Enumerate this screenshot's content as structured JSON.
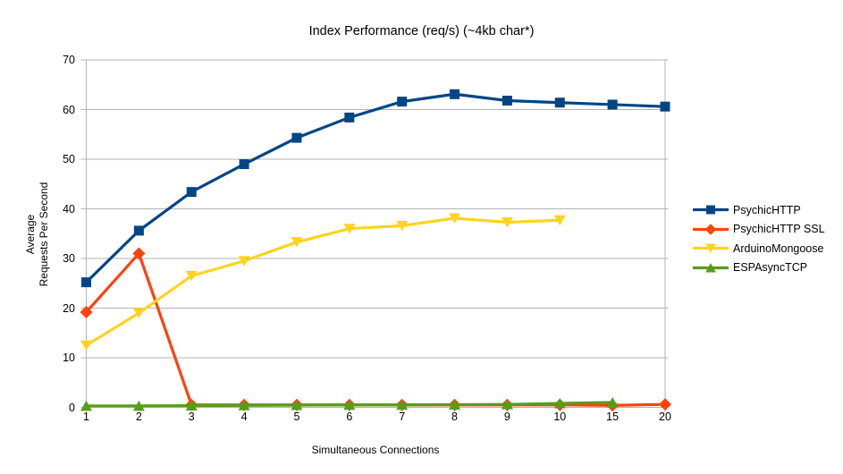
{
  "chart_data": {
    "type": "line",
    "title": "Index Performance (req/s) (~4kb char*)",
    "xlabel": "Simultaneous Connections",
    "ylabel_lines": [
      "Average",
      "Requests Per Second"
    ],
    "categories": [
      "1",
      "2",
      "3",
      "4",
      "5",
      "6",
      "7",
      "8",
      "9",
      "10",
      "15",
      "20"
    ],
    "y_ticks": [
      0,
      10,
      20,
      30,
      40,
      50,
      60,
      70
    ],
    "ylim": [
      0,
      70
    ],
    "grid": "horizontal-major",
    "legend_position": "right",
    "colors": {
      "grid": "#b3b3b3",
      "text": "#000000",
      "background": "#ffffff"
    },
    "series": [
      {
        "name": "PsychicHTTP",
        "color": "#004586",
        "marker": "square",
        "values": [
          25.2,
          35.6,
          43.4,
          49.0,
          54.3,
          58.4,
          61.6,
          63.1,
          61.8,
          61.4,
          61.0,
          60.6
        ]
      },
      {
        "name": "PsychicHTTP SSL",
        "color": "#ff420e",
        "marker": "diamond",
        "values": [
          19.2,
          31.0,
          0.5,
          0.5,
          0.5,
          0.5,
          0.5,
          0.5,
          0.5,
          0.5,
          0.4,
          0.6
        ]
      },
      {
        "name": "ArduinoMongoose",
        "color": "#ffd320",
        "marker": "triangle-down",
        "values": [
          12.5,
          19.0,
          26.5,
          29.5,
          33.3,
          36.0,
          36.6,
          38.1,
          37.3,
          37.7,
          null,
          null
        ]
      },
      {
        "name": "ESPAsyncTCP",
        "color": "#579d1c",
        "marker": "triangle-up",
        "values": [
          0.3,
          0.3,
          0.35,
          0.4,
          0.45,
          0.5,
          0.5,
          0.55,
          0.6,
          0.8,
          1.0,
          null
        ]
      }
    ]
  }
}
